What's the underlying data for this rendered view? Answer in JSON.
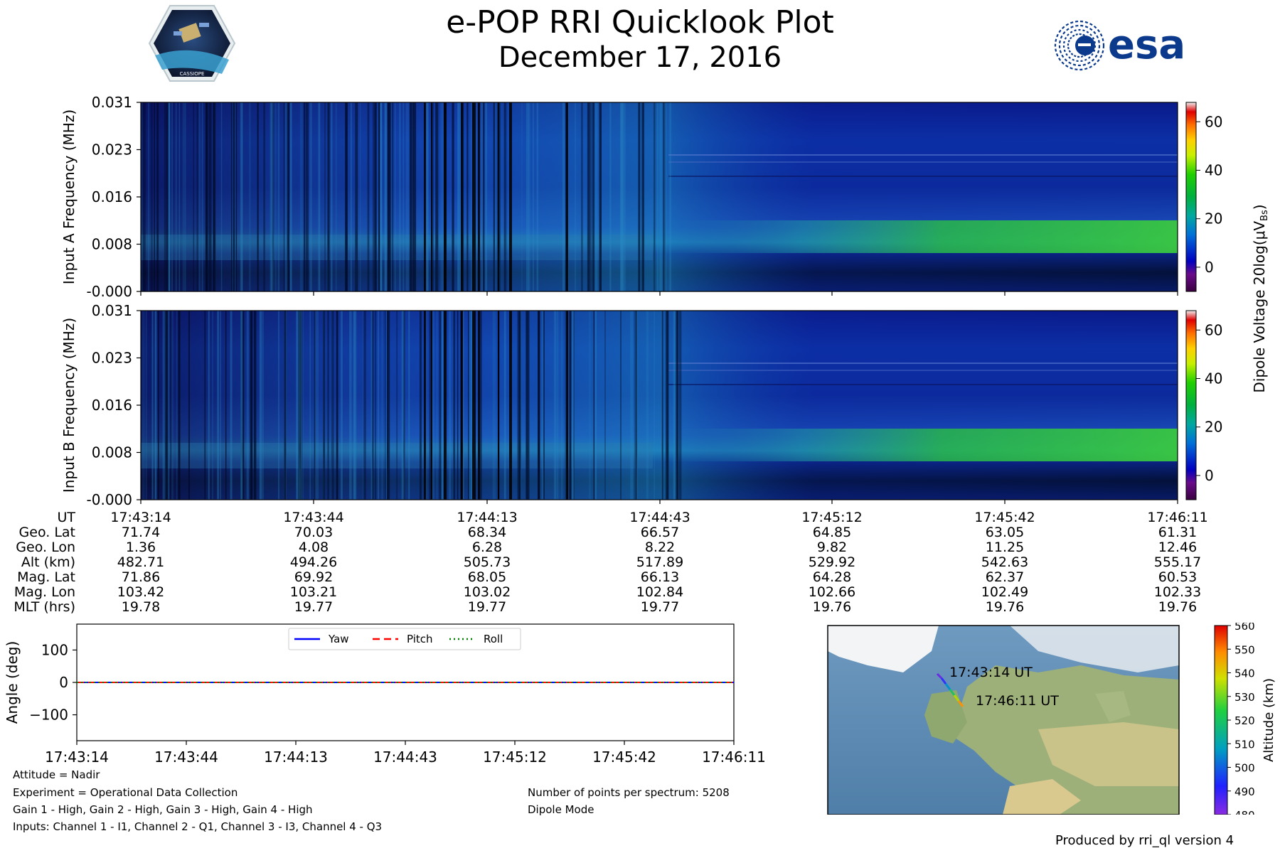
{
  "header": {
    "title": "e-POP RRI Quicklook Plot",
    "date": "December 17, 2016",
    "logo_left_text": "CASSIOPE",
    "logo_right_text": "esa"
  },
  "chart_data": [
    {
      "type": "heatmap",
      "name": "input-a-spectrogram",
      "ylabel": "Input A Frequency (MHz)",
      "yticks": [
        "0.031",
        "0.023",
        "0.016",
        "0.008",
        "-0.000"
      ],
      "ylim": [
        0.0,
        0.031
      ],
      "colorbar": {
        "ticks": [
          "60",
          "40",
          "20",
          "0"
        ],
        "range": [
          -10,
          68
        ]
      }
    },
    {
      "type": "heatmap",
      "name": "input-b-spectrogram",
      "ylabel": "Input B Frequency (MHz)",
      "yticks": [
        "0.031",
        "0.023",
        "0.016",
        "0.008",
        "-0.000"
      ],
      "ylim": [
        0.0,
        0.031
      ],
      "colorbar": {
        "ticks": [
          "60",
          "40",
          "20",
          "0"
        ],
        "range": [
          -10,
          68
        ]
      }
    },
    {
      "type": "line",
      "name": "attitude",
      "ylabel": "Angle (deg)",
      "yticks": [
        "100",
        "0",
        "−100"
      ],
      "ylim": [
        -180,
        180
      ],
      "x": [
        "17:43:14",
        "17:43:44",
        "17:44:13",
        "17:44:43",
        "17:45:12",
        "17:45:42",
        "17:46:11"
      ],
      "series": [
        {
          "name": "Yaw",
          "color": "#0000ff",
          "style": "solid",
          "values": [
            0,
            0,
            0,
            0,
            0,
            0,
            0
          ]
        },
        {
          "name": "Pitch",
          "color": "#ff0000",
          "style": "dashed",
          "values": [
            0,
            0,
            0,
            0,
            0,
            0,
            0
          ]
        },
        {
          "name": "Roll",
          "color": "#008000",
          "style": "dotted",
          "values": [
            0,
            0,
            0,
            0,
            0,
            0,
            0
          ]
        }
      ],
      "legend": "top-center"
    },
    {
      "type": "scatter",
      "name": "orbit-map",
      "annotations": [
        "17:43:14 UT",
        "17:46:11 UT"
      ],
      "colorbar": {
        "label": "Altitude (km)",
        "ticks": [
          "560",
          "550",
          "540",
          "530",
          "520",
          "510",
          "500",
          "490",
          "480"
        ],
        "range": [
          480,
          560
        ]
      }
    }
  ],
  "colorbar_label_main": "Dipole Voltage 20log(μV",
  "colorbar_label_sub": "Bs",
  "colorbar_label_end": ")",
  "ephemeris": {
    "row_labels": [
      "UT",
      "Geo. Lat",
      "Geo. Lon",
      "Alt (km)",
      "Mag. Lat",
      "Mag. Lon",
      "MLT (hrs)"
    ],
    "columns": [
      [
        "17:43:14",
        "71.74",
        "1.36",
        "482.71",
        "71.86",
        "103.42",
        "19.78"
      ],
      [
        "17:43:44",
        "70.03",
        "4.08",
        "494.26",
        "69.92",
        "103.21",
        "19.77"
      ],
      [
        "17:44:13",
        "68.34",
        "6.28",
        "505.73",
        "68.05",
        "103.02",
        "19.77"
      ],
      [
        "17:44:43",
        "66.57",
        "8.22",
        "517.89",
        "66.13",
        "102.84",
        "19.77"
      ],
      [
        "17:45:12",
        "64.85",
        "9.82",
        "529.92",
        "64.28",
        "102.66",
        "19.76"
      ],
      [
        "17:45:42",
        "63.05",
        "11.25",
        "542.63",
        "62.37",
        "102.49",
        "19.76"
      ],
      [
        "17:46:11",
        "61.31",
        "12.46",
        "555.17",
        "60.53",
        "102.33",
        "19.76"
      ]
    ]
  },
  "info": {
    "attitude": "Attitude = Nadir",
    "experiment": "Experiment = Operational Data Collection",
    "gains": "Gain 1 - High, Gain 2 - High, Gain 3 - High, Gain 4 - High",
    "inputs": "Inputs: Channel 1 - I1, Channel 2 - Q1, Channel 3 - I3, Channel 4 - Q3",
    "points": "Number of points per spectrum: 5208",
    "mode": "Dipole Mode",
    "produced": "Produced by rri_ql version 4"
  },
  "colors": {
    "spectro_low": "#000a50",
    "spectro_mid": "#1060c0",
    "spectro_band": "#30c050"
  }
}
